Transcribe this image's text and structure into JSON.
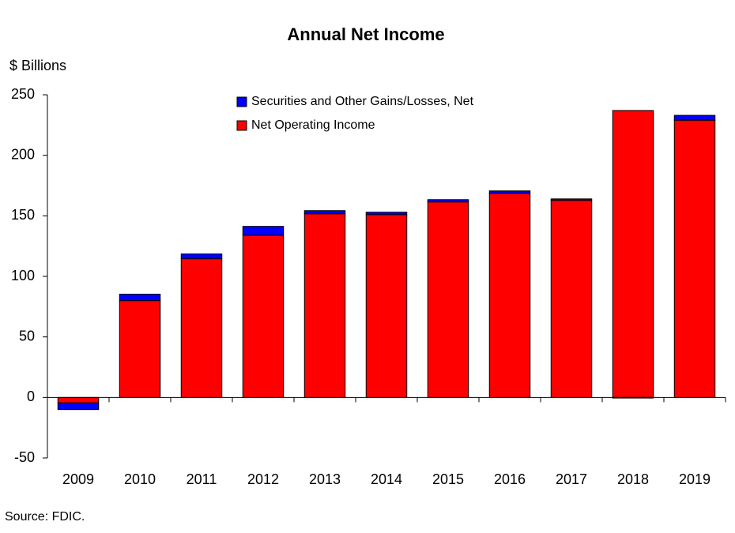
{
  "chart_data": {
    "type": "stacked-bar",
    "title": "Annual Net Income",
    "y_label": "$ Billions",
    "source": "Source:  FDIC.",
    "categories": [
      "2009",
      "2010",
      "2011",
      "2012",
      "2013",
      "2014",
      "2015",
      "2016",
      "2017",
      "2018",
      "2019"
    ],
    "series": [
      {
        "name": "Net Operating Income",
        "color": "#ff0000",
        "values": [
          -4.5,
          80,
          114.6,
          134,
          151.7,
          151,
          161.5,
          168.6,
          162.8,
          237,
          229
        ]
      },
      {
        "name": "Securities and Other Gains/Losses, Net",
        "color": "#0000ff",
        "values": [
          -5.5,
          5.3,
          3.9,
          7.3,
          2.6,
          2,
          1.9,
          2,
          1.2,
          -0.5,
          4
        ]
      }
    ],
    "ylim": [
      -50,
      250
    ],
    "yticks": [
      -50,
      0,
      50,
      100,
      150,
      200,
      250
    ]
  }
}
